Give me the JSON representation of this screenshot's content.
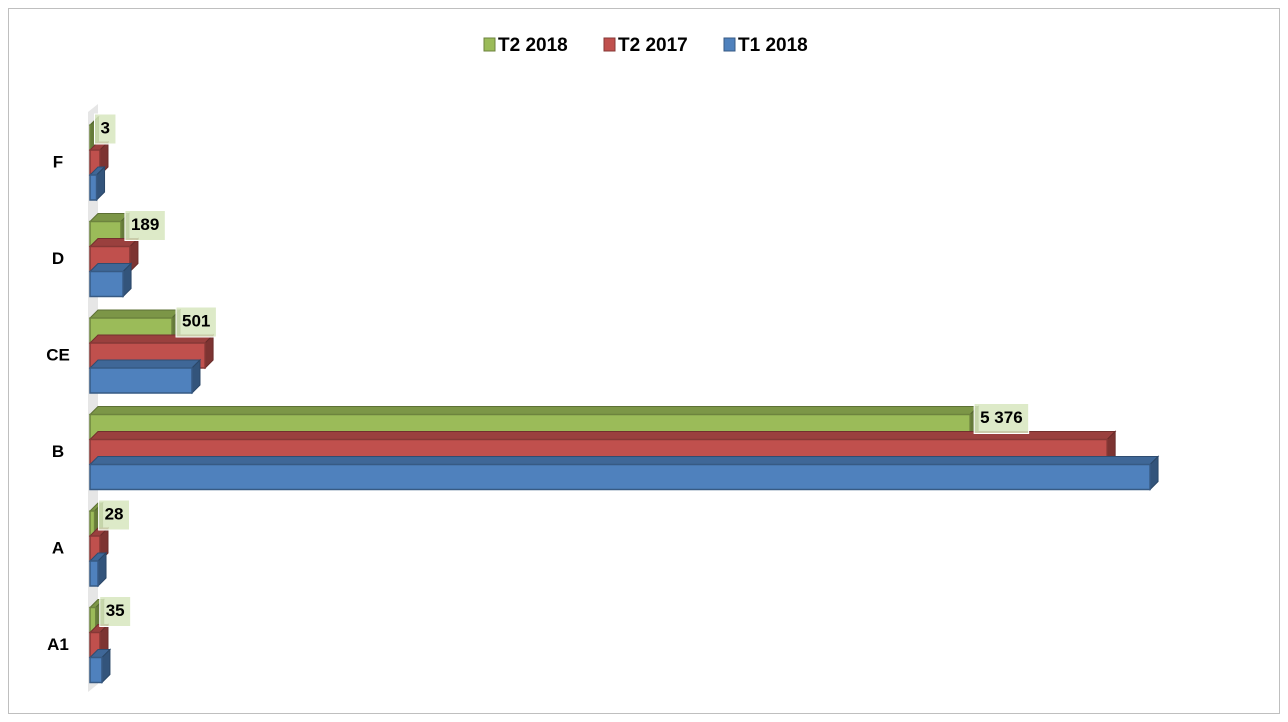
{
  "chart_data": {
    "type": "bar3d_horizontal",
    "categories": [
      "A1",
      "A",
      "B",
      "CE",
      "D",
      "F"
    ],
    "series": [
      {
        "name": "T2 2018",
        "color": "#9bbb59",
        "values": [
          35,
          28,
          5376,
          501,
          189,
          3
        ],
        "value_labels": [
          "35",
          "28",
          "5 376",
          "501",
          "189",
          "3"
        ]
      },
      {
        "name": "T2 2017",
        "color": "#c0504d",
        "values": [
          61,
          61,
          6213,
          703,
          244,
          61
        ]
      },
      {
        "name": "T1 2018",
        "color": "#4f81bd",
        "values": [
          73,
          49,
          6475,
          623,
          202,
          40
        ]
      }
    ],
    "xlim": [
      0,
      7000
    ],
    "legend": "top"
  }
}
